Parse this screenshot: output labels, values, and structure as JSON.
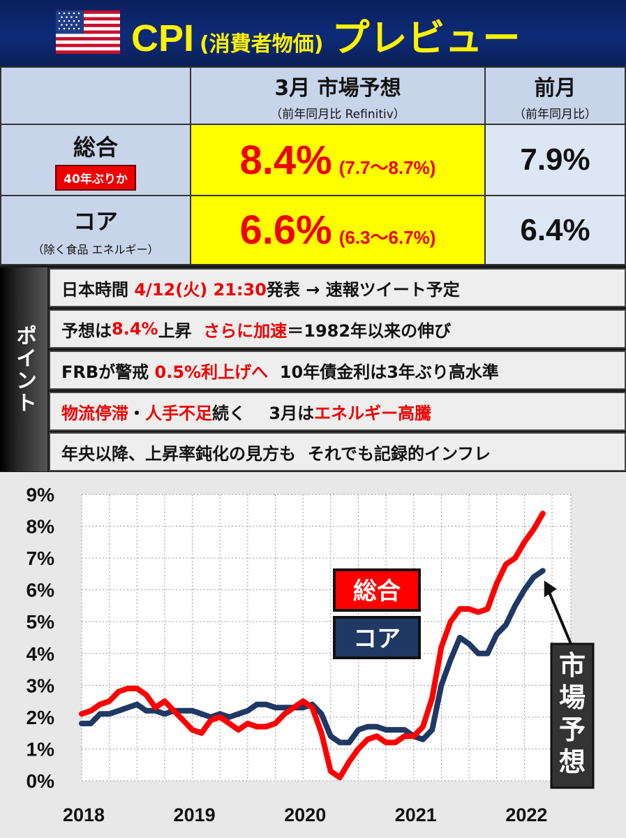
{
  "header": {
    "title_main": "CPI",
    "title_sub": "(消費者物価)",
    "title_suffix": "プレビュー",
    "colors": {
      "bg": "#0d2b78",
      "title": "#fff200"
    }
  },
  "table": {
    "col_forecast_title": "3月 市場予想",
    "col_forecast_sub": "（前年同月比 Refinitiv）",
    "col_prev_title": "前月",
    "col_prev_sub": "（前年同月比）",
    "rows": [
      {
        "label": "総合",
        "badge": "40年ぶりか",
        "sub": "",
        "forecast": "8.4%",
        "range": "(7.7～8.7%)",
        "prev": "7.9%"
      },
      {
        "label": "コア",
        "badge": "",
        "sub": "（除く食品 エネルギー）",
        "forecast": "6.6%",
        "range": "(6.3～6.7%)",
        "prev": "6.4%"
      }
    ]
  },
  "points": {
    "label": "ポイント",
    "rows": [
      [
        {
          "t": "日本時間 ",
          "red": false
        },
        {
          "t": "4/12(火) 21:30",
          "red": true
        },
        {
          "t": "発表 → 速報ツイート予定",
          "red": false
        }
      ],
      [
        {
          "t": "予想は",
          "red": false
        },
        {
          "t": "8.4%",
          "red": true
        },
        {
          "t": "上昇  ",
          "red": false
        },
        {
          "t": "さらに加速",
          "red": true
        },
        {
          "t": "＝1982年以来の伸び",
          "red": false
        }
      ],
      [
        {
          "t": "FRBが警戒 ",
          "red": false
        },
        {
          "t": "0.5%利上げへ",
          "red": true
        },
        {
          "t": "  10年債金利は3年ぶり高水準",
          "red": false
        }
      ],
      [
        {
          "t": "物流停滞",
          "red": true
        },
        {
          "t": "・",
          "red": false
        },
        {
          "t": "人手不足",
          "red": true
        },
        {
          "t": "続く    3月は",
          "red": false
        },
        {
          "t": "エネルギー高騰",
          "red": true
        }
      ],
      [
        {
          "t": "年央以降、上昇率鈍化の見方も  それでも記録的インフレ",
          "red": false
        }
      ]
    ]
  },
  "chart_data": {
    "type": "line",
    "title": "",
    "xlabel": "",
    "ylabel": "",
    "ylim": [
      0,
      9
    ],
    "yticks": [
      "0%",
      "1%",
      "2%",
      "3%",
      "4%",
      "5%",
      "6%",
      "7%",
      "8%",
      "9%"
    ],
    "xticks": [
      {
        "label": "2018",
        "x": 2018.0
      },
      {
        "label": "2019",
        "x": 2019.0
      },
      {
        "label": "2020",
        "x": 2020.0
      },
      {
        "label": "2021",
        "x": 2021.0
      },
      {
        "label": "2022",
        "x": 2022.0
      }
    ],
    "xlim": [
      2018.0,
      2022.42
    ],
    "grid": true,
    "legend": "center-right",
    "series": [
      {
        "name": "総合",
        "color": "#ff0000",
        "x_start": 2018.0,
        "x_step": 0.08333,
        "values": [
          2.1,
          2.2,
          2.4,
          2.5,
          2.8,
          2.9,
          2.9,
          2.7,
          2.3,
          2.5,
          2.2,
          1.9,
          1.6,
          1.5,
          1.9,
          2.0,
          1.8,
          1.6,
          1.8,
          1.7,
          1.7,
          1.8,
          2.1,
          2.3,
          2.5,
          2.3,
          1.5,
          0.3,
          0.1,
          0.6,
          1.0,
          1.3,
          1.4,
          1.2,
          1.2,
          1.4,
          1.4,
          1.7,
          2.6,
          4.2,
          5.0,
          5.4,
          5.4,
          5.3,
          5.4,
          6.2,
          6.8,
          7.0,
          7.5,
          7.9,
          8.4
        ]
      },
      {
        "name": "コア",
        "color": "#1f3864",
        "x_start": 2018.0,
        "x_step": 0.08333,
        "values": [
          1.8,
          1.8,
          2.1,
          2.1,
          2.2,
          2.3,
          2.4,
          2.2,
          2.2,
          2.1,
          2.2,
          2.2,
          2.2,
          2.1,
          2.0,
          2.1,
          2.0,
          2.1,
          2.2,
          2.4,
          2.4,
          2.3,
          2.3,
          2.3,
          2.3,
          2.4,
          2.1,
          1.4,
          1.2,
          1.2,
          1.6,
          1.7,
          1.7,
          1.6,
          1.6,
          1.6,
          1.4,
          1.3,
          1.6,
          3.0,
          3.8,
          4.5,
          4.3,
          4.0,
          4.0,
          4.6,
          4.9,
          5.5,
          6.0,
          6.4,
          6.6
        ]
      }
    ],
    "legend_labels": [
      "総合",
      "コア"
    ],
    "annotation": "市場予想"
  }
}
